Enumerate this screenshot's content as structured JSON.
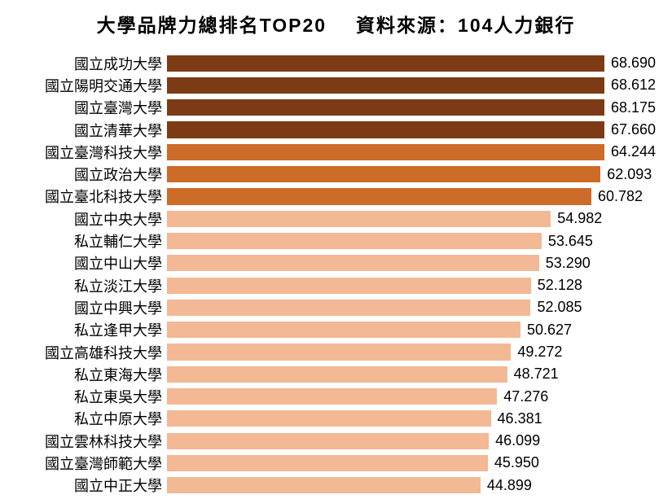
{
  "title_left": "大學品牌力總排名TOP20",
  "title_right": "資料來源：104人力銀行",
  "title_fontsize": 23,
  "label_fontsize": 18,
  "value_fontsize": 18,
  "text_color": "#000000",
  "background_color": "#ffffff",
  "colors": {
    "tier1": "#7c3b14",
    "tier2": "#cd6b28",
    "tier3": "#f3b894"
  },
  "chart": {
    "type": "bar-horizontal",
    "x_max": 70,
    "items": [
      {
        "label": "國立成功大學",
        "value": 68.69,
        "color": "tier1"
      },
      {
        "label": "國立陽明交通大學",
        "value": 68.612,
        "color": "tier1"
      },
      {
        "label": "國立臺灣大學",
        "value": 68.175,
        "color": "tier1"
      },
      {
        "label": "國立清華大學",
        "value": 67.66,
        "color": "tier1"
      },
      {
        "label": "國立臺灣科技大學",
        "value": 64.244,
        "color": "tier2"
      },
      {
        "label": "國立政治大學",
        "value": 62.093,
        "color": "tier2"
      },
      {
        "label": "國立臺北科技大學",
        "value": 60.782,
        "color": "tier2"
      },
      {
        "label": "國立中央大學",
        "value": 54.982,
        "color": "tier3"
      },
      {
        "label": "私立輔仁大學",
        "value": 53.645,
        "color": "tier3"
      },
      {
        "label": "國立中山大學",
        "value": 53.29,
        "color": "tier3"
      },
      {
        "label": "私立淡江大學",
        "value": 52.128,
        "color": "tier3"
      },
      {
        "label": "國立中興大學",
        "value": 52.085,
        "color": "tier3"
      },
      {
        "label": "私立逢甲大學",
        "value": 50.627,
        "color": "tier3"
      },
      {
        "label": "國立高雄科技大學",
        "value": 49.272,
        "color": "tier3"
      },
      {
        "label": "私立東海大學",
        "value": 48.721,
        "color": "tier3"
      },
      {
        "label": "私立東吳大學",
        "value": 47.276,
        "color": "tier3"
      },
      {
        "label": "私立中原大學",
        "value": 46.381,
        "color": "tier3"
      },
      {
        "label": "國立雲林科技大學",
        "value": 46.099,
        "color": "tier3"
      },
      {
        "label": "國立臺灣師範大學",
        "value": 45.95,
        "color": "tier3"
      },
      {
        "label": "國立中正大學",
        "value": 44.899,
        "color": "tier3"
      }
    ]
  }
}
